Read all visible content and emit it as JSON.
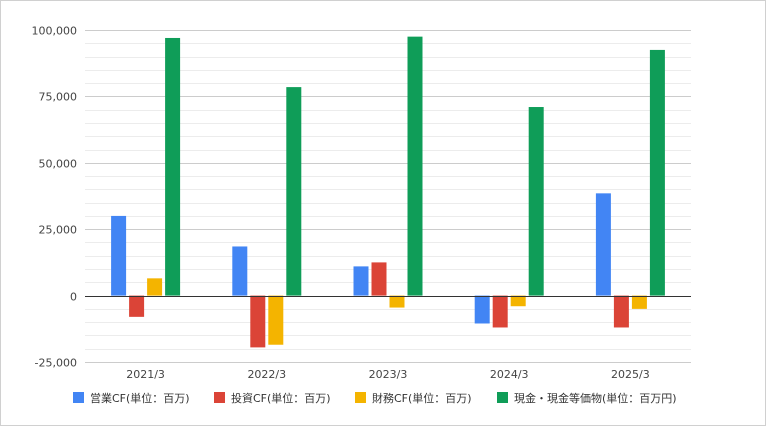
{
  "chart_data": {
    "type": "bar",
    "categories": [
      "2021/3",
      "2022/3",
      "2023/3",
      "2024/3",
      "2025/3"
    ],
    "series": [
      {
        "name": "営業CF(単位：百万)",
        "color": "#4285F4",
        "values": [
          30000,
          18500,
          11000,
          -10500,
          38500
        ]
      },
      {
        "name": "投資CF(単位：百万)",
        "color": "#DB4437",
        "values": [
          -8000,
          -19500,
          12500,
          -12000,
          -12000
        ]
      },
      {
        "name": "財務CF(単位：百万)",
        "color": "#F4B400",
        "values": [
          6500,
          -18500,
          -4500,
          -4000,
          -5000
        ]
      },
      {
        "name": "現金・現金等価物(単位：百万円)",
        "color": "#0F9D58",
        "values": [
          97000,
          78500,
          97500,
          71000,
          92500
        ]
      }
    ],
    "ylim": [
      -25000,
      100000
    ],
    "yticks": [
      -25000,
      0,
      25000,
      50000,
      75000,
      100000
    ],
    "ytick_labels": [
      "-25,000",
      "0",
      "25,000",
      "50,000",
      "75,000",
      "100,000"
    ],
    "grid": true,
    "minor_grid_step": 5000,
    "legend_position": "bottom"
  }
}
